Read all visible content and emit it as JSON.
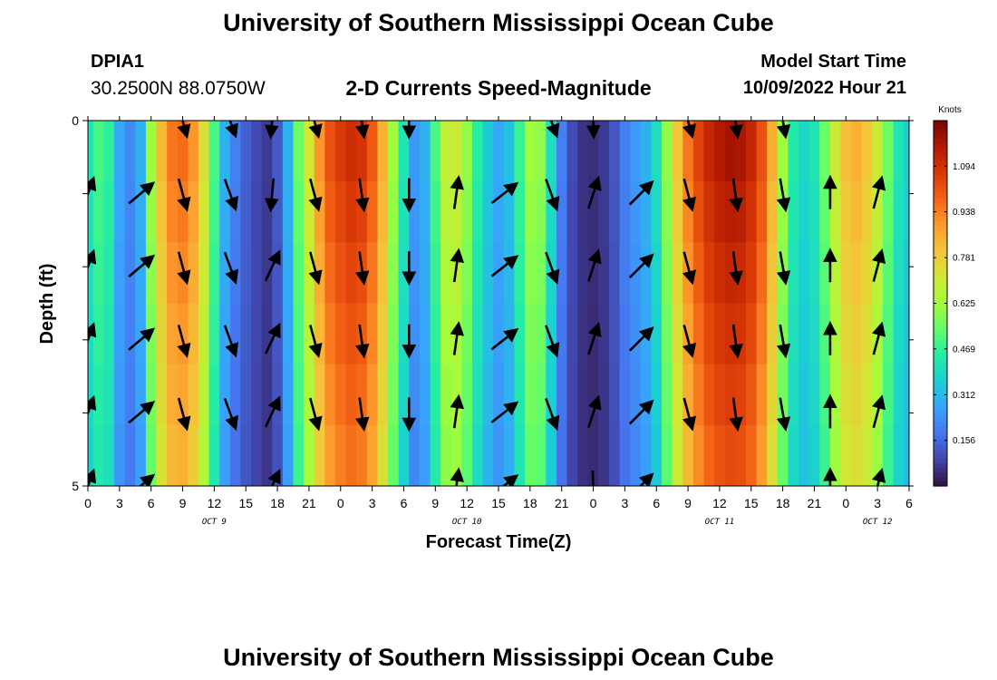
{
  "header": {
    "title": "University of Southern Mississippi Ocean Cube",
    "station": "DPIA1",
    "coordinates": "30.2500N  88.0750W",
    "subtitle": "2-D Currents Speed-Magnitude",
    "model_start_label": "Model Start Time",
    "model_start_value": "10/09/2022 Hour 21"
  },
  "footer": {
    "title": "University of Southern Mississippi Ocean Cube"
  },
  "chart_data": {
    "type": "heatmap",
    "xlabel": "Forecast Time(Z)",
    "ylabel": "Depth (ft)",
    "x_start_hour": 0,
    "x_step_hours": 1,
    "x_end_hour": 78,
    "x_tick_labels": [
      "0",
      "3",
      "6",
      "9",
      "12",
      "15",
      "18",
      "21",
      "0",
      "3",
      "6",
      "9",
      "12",
      "15",
      "18",
      "21",
      "0",
      "3",
      "6",
      "9",
      "12",
      "15",
      "18",
      "21",
      "0",
      "3",
      "6"
    ],
    "date_labels": [
      {
        "text": "OCT 9",
        "hour": 12
      },
      {
        "text": "OCT 10",
        "hour": 36
      },
      {
        "text": "OCT 11",
        "hour": 60
      },
      {
        "text": "OCT 12",
        "hour": 75
      }
    ],
    "y_tick_labels": [
      "0",
      "5"
    ],
    "ylim": [
      0,
      5
    ],
    "depth_levels": [
      0,
      1,
      2,
      3,
      4,
      5
    ],
    "colorbar": {
      "label": "Knots",
      "min": 0.0,
      "max": 1.25,
      "tick_values": [
        0.156,
        0.312,
        0.469,
        0.625,
        0.781,
        0.938,
        1.094
      ],
      "tick_labels": [
        "0.156",
        "0.312",
        "0.469",
        "0.625",
        "0.781",
        "0.938",
        "1.094"
      ],
      "colors": [
        "#30123b",
        "#4145ab",
        "#4675ed",
        "#39a2fc",
        "#1bcfd4",
        "#24eca6",
        "#61fc6c",
        "#a4fc3b",
        "#d1e834",
        "#f3c63a",
        "#fe9b2d",
        "#f36315",
        "#d93806",
        "#b11901",
        "#7a0403"
      ]
    },
    "speed_by_hour": [
      [
        0,
        0.42
      ],
      [
        1,
        0.5
      ],
      [
        2,
        0.46
      ],
      [
        3,
        0.28
      ],
      [
        4,
        0.22
      ],
      [
        5,
        0.3
      ],
      [
        6,
        0.62
      ],
      [
        7,
        0.83
      ],
      [
        8,
        0.95
      ],
      [
        9,
        0.97
      ],
      [
        10,
        0.9
      ],
      [
        11,
        0.74
      ],
      [
        12,
        0.5
      ],
      [
        13,
        0.3
      ],
      [
        14,
        0.2
      ],
      [
        15,
        0.14
      ],
      [
        16,
        0.1
      ],
      [
        17,
        0.07
      ],
      [
        18,
        0.13
      ],
      [
        19,
        0.3
      ],
      [
        20,
        0.55
      ],
      [
        21,
        0.72
      ],
      [
        22,
        0.9
      ],
      [
        23,
        1.02
      ],
      [
        24,
        1.07
      ],
      [
        25,
        1.1
      ],
      [
        26,
        1.08
      ],
      [
        27,
        1.0
      ],
      [
        28,
        0.85
      ],
      [
        29,
        0.62
      ],
      [
        30,
        0.42
      ],
      [
        31,
        0.25
      ],
      [
        32,
        0.3
      ],
      [
        33,
        0.5
      ],
      [
        34,
        0.68
      ],
      [
        35,
        0.7
      ],
      [
        36,
        0.6
      ],
      [
        37,
        0.45
      ],
      [
        38,
        0.35
      ],
      [
        39,
        0.28
      ],
      [
        40,
        0.33
      ],
      [
        41,
        0.48
      ],
      [
        42,
        0.62
      ],
      [
        43,
        0.6
      ],
      [
        44,
        0.4
      ],
      [
        45,
        0.2
      ],
      [
        46,
        0.1
      ],
      [
        47,
        0.06
      ],
      [
        48,
        0.05
      ],
      [
        49,
        0.07
      ],
      [
        50,
        0.12
      ],
      [
        51,
        0.2
      ],
      [
        52,
        0.25
      ],
      [
        53,
        0.3
      ],
      [
        54,
        0.4
      ],
      [
        55,
        0.6
      ],
      [
        56,
        0.8
      ],
      [
        57,
        0.95
      ],
      [
        58,
        1.05
      ],
      [
        59,
        1.12
      ],
      [
        60,
        1.16
      ],
      [
        61,
        1.18
      ],
      [
        62,
        1.17
      ],
      [
        63,
        1.12
      ],
      [
        64,
        1.02
      ],
      [
        65,
        0.85
      ],
      [
        66,
        0.62
      ],
      [
        67,
        0.44
      ],
      [
        68,
        0.38
      ],
      [
        69,
        0.42
      ],
      [
        70,
        0.55
      ],
      [
        71,
        0.7
      ],
      [
        72,
        0.82
      ],
      [
        73,
        0.85
      ],
      [
        74,
        0.8
      ],
      [
        75,
        0.7
      ],
      [
        76,
        0.55
      ],
      [
        77,
        0.42
      ],
      [
        78,
        0.36
      ]
    ],
    "arrows": [
      {
        "hour": 0,
        "levels": [
          1,
          2,
          3,
          4,
          5
        ],
        "dir": 20
      },
      {
        "hour": 5,
        "levels": [
          1,
          2,
          3,
          4,
          5
        ],
        "dir": 50
      },
      {
        "hour": 9,
        "levels": [
          0,
          1,
          2,
          3,
          4
        ],
        "dir": 165
      },
      {
        "hour": 13.5,
        "levels": [
          0,
          1,
          2,
          3,
          4
        ],
        "dir": 160
      },
      {
        "hour": 17.5,
        "levels": [
          0,
          1
        ],
        "dir": 185
      },
      {
        "hour": 17.5,
        "levels": [
          2,
          3,
          4,
          5
        ],
        "dir": 25
      },
      {
        "hour": 21.5,
        "levels": [
          0,
          1,
          2,
          3,
          4
        ],
        "dir": 165
      },
      {
        "hour": 26,
        "levels": [
          0,
          1,
          2,
          3,
          4
        ],
        "dir": 172
      },
      {
        "hour": 30.5,
        "levels": [
          0,
          1,
          2,
          3,
          4
        ],
        "dir": 180
      },
      {
        "hour": 35,
        "levels": [
          1,
          2,
          3,
          4,
          5
        ],
        "dir": 8
      },
      {
        "hour": 39.5,
        "levels": [
          1,
          2,
          3,
          4,
          5
        ],
        "dir": 52
      },
      {
        "hour": 44,
        "levels": [
          0,
          1,
          2,
          3,
          4
        ],
        "dir": 160
      },
      {
        "hour": 48,
        "levels": [
          0,
          5
        ],
        "dir": 178
      },
      {
        "hour": 48,
        "levels": [
          1,
          2,
          3,
          4
        ],
        "dir": 18
      },
      {
        "hour": 52.5,
        "levels": [
          1,
          2,
          3,
          4,
          5
        ],
        "dir": 45
      },
      {
        "hour": 57,
        "levels": [
          0,
          1,
          2,
          3,
          4
        ],
        "dir": 165
      },
      {
        "hour": 61.5,
        "levels": [
          0,
          1,
          2,
          3,
          4
        ],
        "dir": 172
      },
      {
        "hour": 66,
        "levels": [
          0,
          1,
          2,
          3,
          4
        ],
        "dir": 170
      },
      {
        "hour": 70.5,
        "levels": [
          1,
          2,
          3,
          4,
          5
        ],
        "dir": 0
      },
      {
        "hour": 75,
        "levels": [
          1,
          2,
          3,
          4,
          5
        ],
        "dir": 15
      }
    ]
  }
}
